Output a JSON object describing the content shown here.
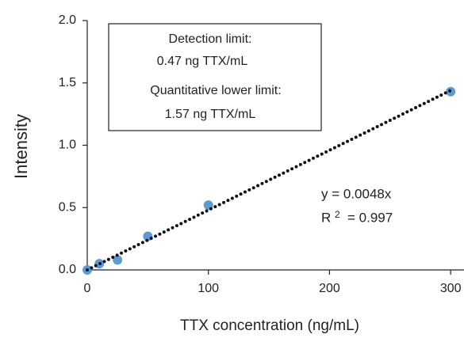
{
  "chart_data": {
    "type": "scatter",
    "x_label": "TTX concentration  (ng/mL)",
    "y_label": "Intensity",
    "x": [
      0,
      10,
      25,
      50,
      100,
      300
    ],
    "values": [
      0.0,
      0.05,
      0.08,
      0.27,
      0.52,
      1.43
    ],
    "color": "#5b9bd5",
    "trendline": {
      "x": [
        0,
        300
      ],
      "values": [
        0,
        1.44
      ],
      "color": "#111111"
    },
    "xlim": [
      0,
      311
    ],
    "ylim": [
      0,
      2
    ],
    "xticks": [
      0,
      100,
      200,
      300
    ],
    "yticks": [
      {
        "value": 0,
        "label": "0.0"
      },
      {
        "value": 0.5,
        "label": "0.5"
      },
      {
        "value": 1,
        "label": "1.0"
      },
      {
        "value": 1.5,
        "label": "1.5"
      },
      {
        "value": 2,
        "label": "2.0"
      }
    ],
    "grid": false,
    "annotations": {
      "box": [
        "Detection limit:",
        "0.47 ng TTX/mL",
        "Quantitative lower limit:",
        "1.57 ng TTX/mL"
      ],
      "equation": "y = 0.0048x",
      "r_squared_label": "R",
      "r_squared_sup": "2",
      "r_squared_value": "= 0.997"
    }
  }
}
